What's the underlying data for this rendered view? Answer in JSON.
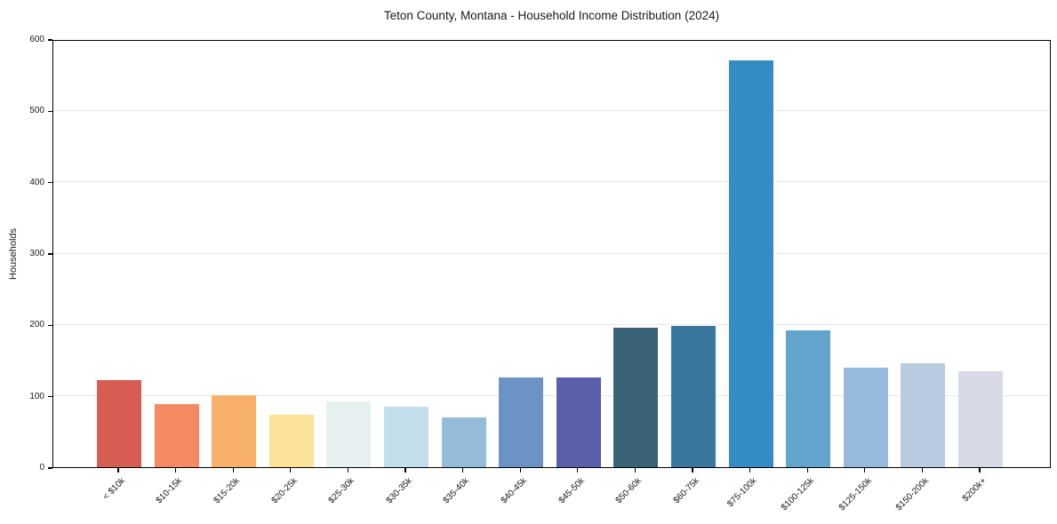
{
  "chart_data": {
    "type": "bar",
    "title": "Teton County, Montana - Household Income Distribution (2024)",
    "xlabel": "",
    "ylabel": "Households",
    "categories": [
      "< $10k",
      "$10-15k",
      "$15-20k",
      "$20-25k",
      "$25-30k",
      "$30-35k",
      "$35-40k",
      "$40-45k",
      "$45-50k",
      "$50-60k",
      "$60-75k",
      "$75-100k",
      "$100-125k",
      "$125-150k",
      "$150-200k",
      "$200k+"
    ],
    "values": [
      122,
      88,
      101,
      74,
      92,
      85,
      70,
      126,
      126,
      195,
      198,
      570,
      192,
      140,
      146,
      134
    ],
    "bar_colors": [
      "#d65d51",
      "#f58a62",
      "#f9b06a",
      "#fce198",
      "#e7f1f2",
      "#c2dfeb",
      "#93bdd9",
      "#6b93c4",
      "#5a5fab",
      "#3b6378",
      "#3a779e",
      "#348cc3",
      "#61a5cd",
      "#96bade",
      "#b9cbdf",
      "#d7d9e6"
    ],
    "ylim": [
      0,
      600
    ],
    "yticks": [
      0,
      100,
      200,
      300,
      400,
      500,
      600
    ],
    "grid": "horizontal",
    "legend": "none",
    "gridline_color": "#e7e7e7",
    "axis_color": "#000000",
    "text_color": "#1a1a1a",
    "background_color": "#ffffff"
  }
}
